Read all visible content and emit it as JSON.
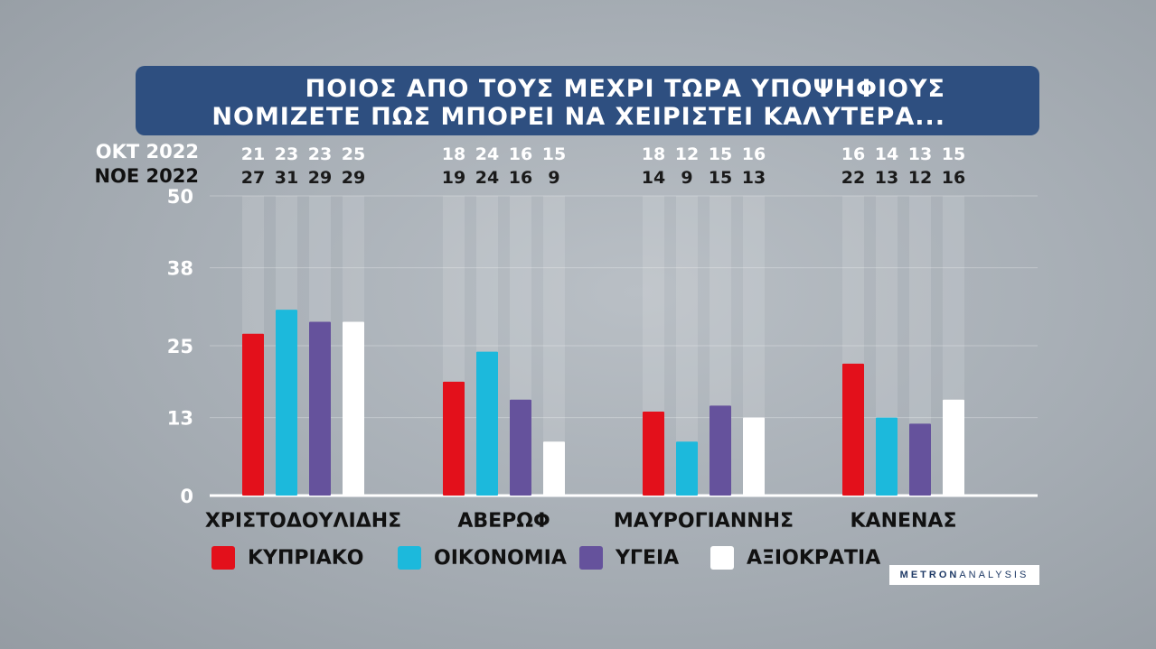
{
  "title": {
    "line1": "ΠΟΙΟΣ ΑΠΟ ΤΟΥΣ ΜΕΧΡΙ ΤΩΡΑ ΥΠΟΨΗΦΙΟΥΣ",
    "line2": "ΝΟΜΙΖΕΤΕ ΠΩΣ ΜΠΟΡΕΙ ΝΑ ΧΕΙΡΙΣΤΕΙ ΚΑΛΥΤΕΡΑ..."
  },
  "row_labels": {
    "oct": "ΟΚΤ 2022",
    "nov": "ΝΟΕ 2022"
  },
  "logo": {
    "part1": "METRON",
    "part2": "ANALYSIS"
  },
  "colors": {
    "title_bg": "#2e4f80",
    "ΚΥΠΡΙΑΚΟ": "#e3101b",
    "ΟΙΚΟΝΟΜΙΑ": "#1cb9dc",
    "ΥΓΕΙΑ": "#65529c",
    "ΑΞΙΟΚΡΑΤΙΑ": "#ffffff"
  },
  "chart_data": {
    "type": "bar",
    "categories": [
      "ΧΡΙΣΤΟΔΟΥΛΙΔΗΣ",
      "ΑΒΕΡΩΦ",
      "ΜΑΥΡΟΓΙΑΝΝΗΣ",
      "ΚΑΝΕΝΑΣ"
    ],
    "series": [
      {
        "name": "ΚΥΠΡΙΑΚΟ",
        "values": [
          27,
          19,
          14,
          22
        ],
        "oct_values": [
          21,
          18,
          18,
          16
        ]
      },
      {
        "name": "ΟΙΚΟΝΟΜΙΑ",
        "values": [
          31,
          24,
          9,
          13
        ],
        "oct_values": [
          23,
          24,
          12,
          14
        ]
      },
      {
        "name": "ΥΓΕΙΑ",
        "values": [
          29,
          16,
          15,
          12
        ],
        "oct_values": [
          23,
          16,
          15,
          13
        ]
      },
      {
        "name": "ΑΞΙΟΚΡΑΤΙΑ",
        "values": [
          29,
          9,
          13,
          16
        ],
        "oct_values": [
          25,
          15,
          16,
          15
        ]
      }
    ],
    "yticks": [
      "0",
      "13",
      "25",
      "38",
      "50"
    ],
    "ylim": [
      0,
      50
    ],
    "grid": true,
    "legend": "bottom"
  }
}
